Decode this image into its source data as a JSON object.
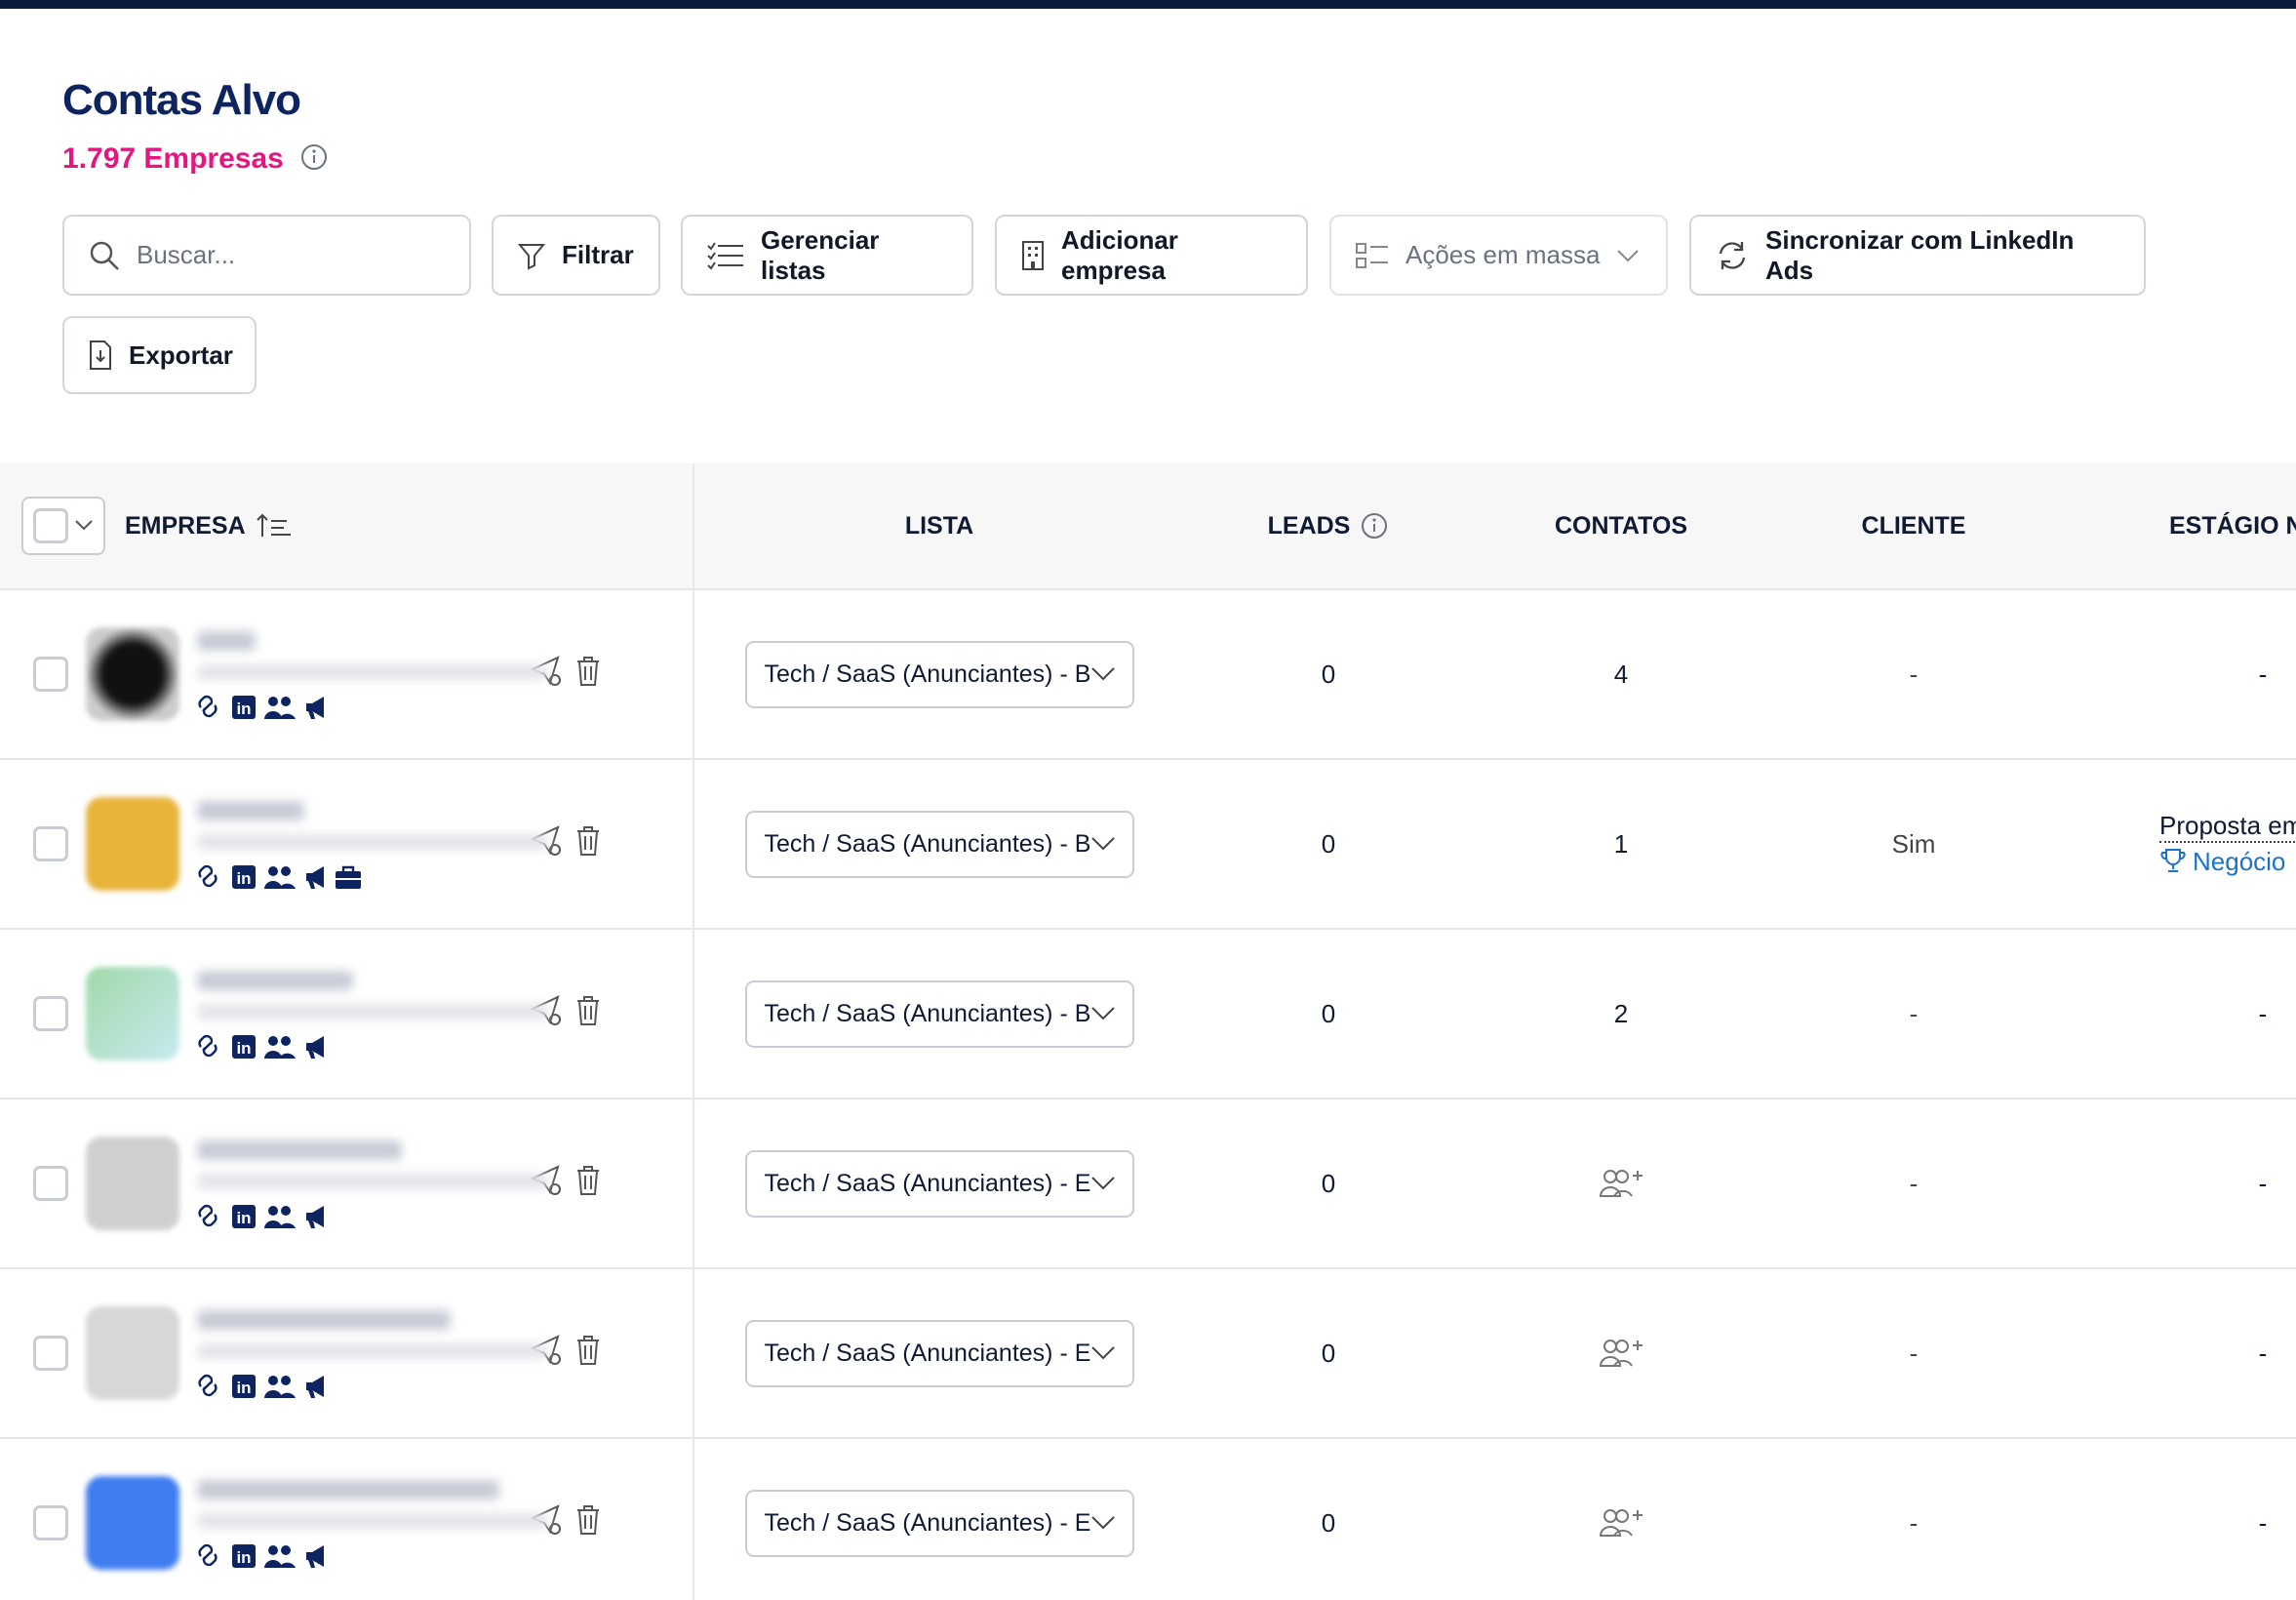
{
  "header": {
    "title": "Contas Alvo",
    "count": "1.797 Empresas"
  },
  "toolbar": {
    "search_placeholder": "Buscar...",
    "buttons": [
      "Filtrar",
      "Gerenciar listas",
      "Adicionar empresa",
      "Ações em massa",
      "Sincronizar com LinkedIn Ads",
      "Exportar"
    ]
  },
  "table": {
    "columns": [
      "EMPRESA",
      "LISTA",
      "LEADS",
      "CONTATOS",
      "CLIENTE",
      "ESTÁGIO NO"
    ],
    "rows": [
      {
        "lista": "Tech / SaaS (Anunciantes) - B",
        "leads": "0",
        "contatos": "4",
        "cliente": "-",
        "estagio": [
          "-"
        ]
      },
      {
        "lista": "Tech / SaaS (Anunciantes) - B",
        "leads": "0",
        "contatos": "1",
        "cliente": "Sim",
        "estagio": [
          "Proposta em",
          "Negócio"
        ]
      },
      {
        "lista": "Tech / SaaS (Anunciantes) - B",
        "leads": "0",
        "contatos": "2",
        "cliente": "-",
        "estagio": [
          "-"
        ]
      },
      {
        "lista": "Tech / SaaS (Anunciantes) - E",
        "leads": "0",
        "contatos": null,
        "cliente": "-",
        "estagio": [
          "-"
        ]
      },
      {
        "lista": "Tech / SaaS (Anunciantes) - E",
        "leads": "0",
        "contatos": null,
        "cliente": "-",
        "estagio": [
          "-"
        ]
      },
      {
        "lista": "Tech / SaaS (Anunciantes) - E",
        "leads": "0",
        "contatos": null,
        "cliente": "-",
        "estagio": [
          "-"
        ]
      }
    ]
  }
}
